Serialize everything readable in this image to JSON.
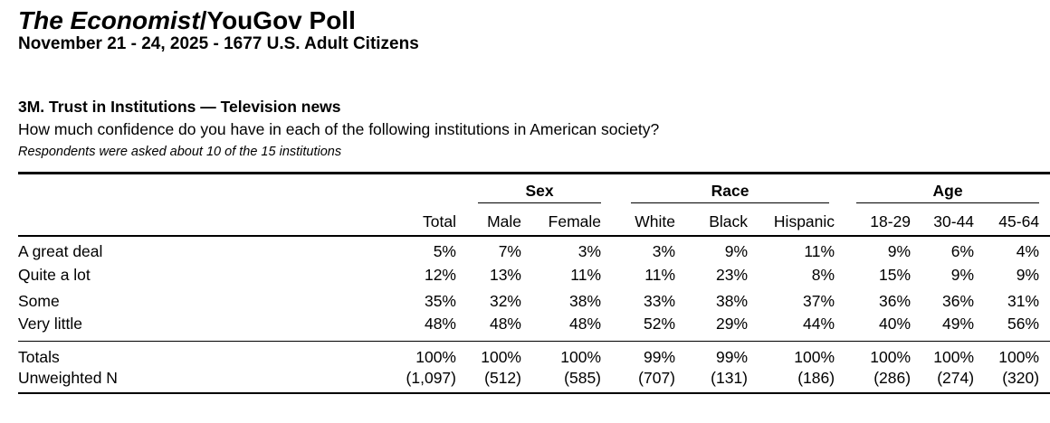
{
  "colors": {
    "text": "#000000",
    "background": "#ffffff",
    "rule": "#000000"
  },
  "header": {
    "title_italic": "The Economist",
    "title_rest": "/YouGov Poll",
    "subtitle": "November 21 - 24, 2025 - 1677 U.S. Adult Citizens"
  },
  "question": {
    "title": "3M. Trust in Institutions — Television news",
    "text": "How much confidence do you have in each of the following institutions in American society?",
    "note": "Respondents were asked about 10 of the 15 institutions"
  },
  "table": {
    "groups": [
      {
        "label": "Sex",
        "span": 2
      },
      {
        "label": "Race",
        "span": 3
      },
      {
        "label": "Age",
        "span": 3
      }
    ],
    "columns": [
      "Total",
      "Male",
      "Female",
      "White",
      "Black",
      "Hispanic",
      "18-29",
      "30-44",
      "45-64"
    ],
    "rows": [
      {
        "label": "A great deal",
        "values": [
          "5%",
          "7%",
          "3%",
          "3%",
          "9%",
          "11%",
          "9%",
          "6%",
          "4%"
        ]
      },
      {
        "label": "Quite a lot",
        "values": [
          "12%",
          "13%",
          "11%",
          "11%",
          "23%",
          "8%",
          "15%",
          "9%",
          "9%"
        ]
      },
      {
        "label": "Some",
        "values": [
          "35%",
          "32%",
          "38%",
          "33%",
          "38%",
          "37%",
          "36%",
          "36%",
          "31%"
        ]
      },
      {
        "label": "Very little",
        "values": [
          "48%",
          "48%",
          "48%",
          "52%",
          "29%",
          "44%",
          "40%",
          "49%",
          "56%"
        ]
      }
    ],
    "footer_rows": [
      {
        "label": "Totals",
        "values": [
          "100%",
          "100%",
          "100%",
          "99%",
          "99%",
          "100%",
          "100%",
          "100%",
          "100%"
        ]
      },
      {
        "label": "Unweighted N",
        "values": [
          "(1,097)",
          "(512)",
          "(585)",
          "(707)",
          "(131)",
          "(186)",
          "(286)",
          "(274)",
          "(320)"
        ]
      }
    ]
  }
}
